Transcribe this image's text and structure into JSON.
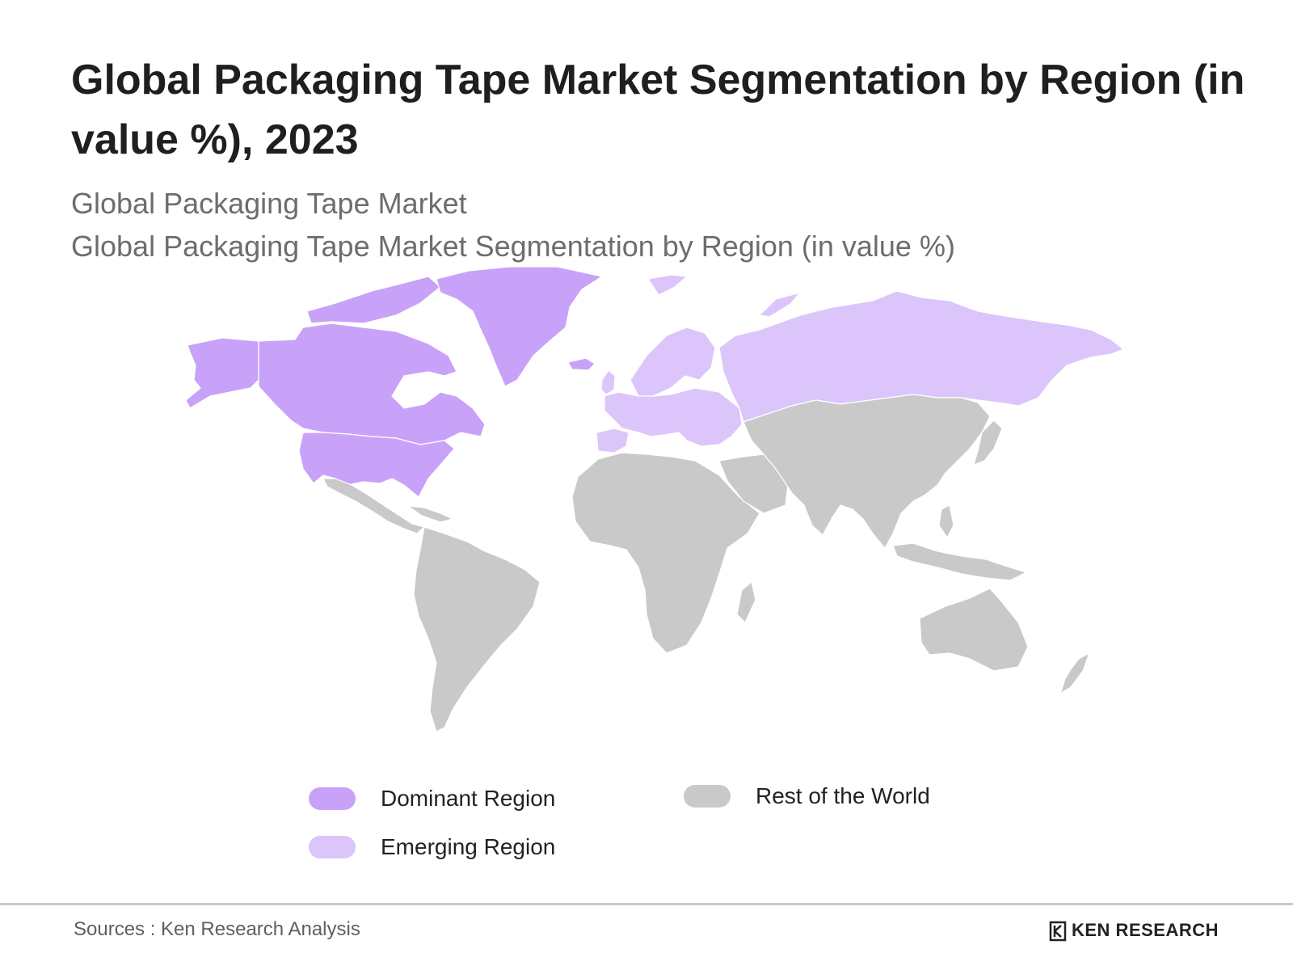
{
  "title": "Global Packaging Tape Market Segmentation by Region (in value %), 2023",
  "subtitle_1": "Global Packaging Tape Market",
  "subtitle_2": "Global Packaging Tape Market Segmentation by Region (in value %)",
  "colors": {
    "dominant": "#c8a2f8",
    "emerging": "#dcc5fb",
    "rest": "#c9c9c9",
    "border": "#ffffff"
  },
  "legend": [
    {
      "label": "Dominant Region",
      "color": "#c8a2f8"
    },
    {
      "label": "Emerging Region",
      "color": "#dcc5fb"
    },
    {
      "label": "Rest of the World",
      "color": "#c9c9c9"
    }
  ],
  "regions": {
    "dominant": [
      "North America",
      "Greenland"
    ],
    "emerging": [
      "Europe",
      "Russia"
    ],
    "rest": [
      "Latin America",
      "Africa",
      "Middle East",
      "Asia",
      "Oceania"
    ]
  },
  "source": "Sources : Ken Research Analysis",
  "brand": "KEN RESEARCH"
}
